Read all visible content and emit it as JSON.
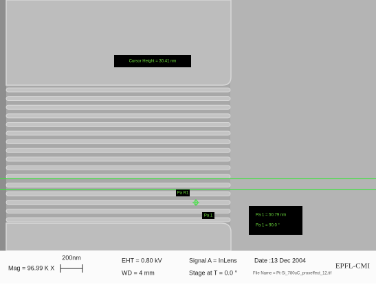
{
  "annotations": {
    "cursor_height": "Cursor Height = 30.41 nm",
    "marker_r1": "Pa R1",
    "marker_1": "Pa 1",
    "pa1_length": "Pa 1 = 50.79 nm",
    "pa1_angle": "Pa 1 = 90.0 °"
  },
  "info_bar": {
    "mag": "Mag = 96.99 K X",
    "scale": "200nm",
    "eht": "EHT = 0.80 kV",
    "wd": "WD = 4 mm",
    "signal": "Signal A = InLens",
    "stage": "Stage at T = 0.0 °",
    "date": "Date :13 Dec 2004",
    "file_name": "File Name = Pt-Si_780uC_proxeffect_12.tif",
    "logo": "EPFL-CMI"
  }
}
